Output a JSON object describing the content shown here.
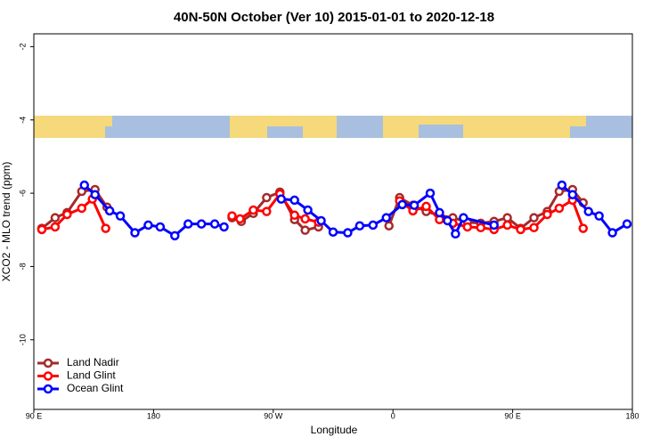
{
  "chart_data": {
    "type": "line",
    "title": "40N-50N October (Ver 10)   2015-01-01 to 2020-12-18",
    "x_label": "Longitude",
    "y_label": "XCO2 - MLO trend (ppm)",
    "xlim": [
      90,
      540
    ],
    "xticks": [
      {
        "value": 90,
        "label": "90 E"
      },
      180,
      {
        "value": 270,
        "label": "90 W"
      },
      {
        "value": 360,
        "label": "0"
      },
      {
        "value": 450,
        "label": "90 E"
      },
      {
        "value": 540,
        "label": "180"
      }
    ],
    "ylim": [
      -11.9,
      -1.65
    ],
    "yticks": [
      -2,
      -4,
      -6,
      -8,
      -10
    ],
    "legend": "bottom-left",
    "series": [
      {
        "name": "Land Nadir",
        "color": "#a52a2a",
        "x": [
          96,
          106,
          115,
          126,
          136,
          145,
          null,
          239,
          246,
          255,
          265,
          275,
          286,
          294,
          304,
          null,
          357,
          365,
          375,
          385,
          395,
          405,
          416,
          426,
          436,
          446,
          456,
          466,
          476,
          485,
          495,
          503
        ],
        "values": [
          -6.96,
          -6.67,
          -6.53,
          -5.95,
          -5.9,
          -6.38,
          null,
          -6.67,
          -6.77,
          -6.55,
          -6.12,
          -5.97,
          -6.72,
          -7.01,
          -6.92,
          null,
          -6.89,
          -6.12,
          -6.33,
          -6.5,
          -6.6,
          -6.67,
          -6.79,
          -6.82,
          -6.77,
          -6.67,
          -6.96,
          -6.67,
          -6.5,
          -5.95,
          -5.9,
          -6.26
        ]
      },
      {
        "name": "Land Glint",
        "color": "#ff0000",
        "x": [
          96,
          106,
          115,
          126,
          134,
          144,
          null,
          239,
          245,
          255,
          265,
          275,
          286,
          294,
          304,
          null,
          365,
          375,
          385,
          395,
          405,
          416,
          426,
          436,
          446,
          456,
          466,
          476,
          485,
          495,
          503
        ],
        "values": [
          -6.99,
          -6.92,
          -6.58,
          -6.41,
          -6.16,
          -6.96,
          null,
          -6.62,
          -6.7,
          -6.46,
          -6.5,
          -6.02,
          -6.6,
          -6.7,
          -6.79,
          null,
          -6.21,
          -6.48,
          -6.36,
          -6.72,
          -6.82,
          -6.92,
          -6.94,
          -6.99,
          -6.87,
          -6.99,
          -6.94,
          -6.58,
          -6.41,
          -6.19,
          -6.96
        ]
      },
      {
        "name": "Ocean Glint",
        "color": "#0000ff",
        "x": [
          128,
          136,
          147,
          155,
          166,
          176,
          185,
          196,
          206,
          216,
          226,
          233,
          null,
          276,
          286,
          296,
          306,
          315,
          326,
          335,
          345,
          355,
          367,
          376,
          388,
          395,
          401,
          407,
          413,
          436,
          null,
          487,
          495,
          507,
          515,
          525,
          536
        ],
        "values": [
          -5.78,
          -6.04,
          -6.48,
          -6.62,
          -7.08,
          -6.87,
          -6.92,
          -7.16,
          -6.84,
          -6.84,
          -6.84,
          -6.92,
          null,
          -6.16,
          -6.19,
          -6.46,
          -6.75,
          -7.06,
          -7.08,
          -6.89,
          -6.87,
          -6.67,
          -6.31,
          -6.33,
          -6.0,
          -6.53,
          -6.75,
          -7.11,
          -6.67,
          -6.87,
          null,
          -5.78,
          -6.04,
          -6.5,
          -6.62,
          -7.08,
          -6.84
        ]
      }
    ]
  }
}
